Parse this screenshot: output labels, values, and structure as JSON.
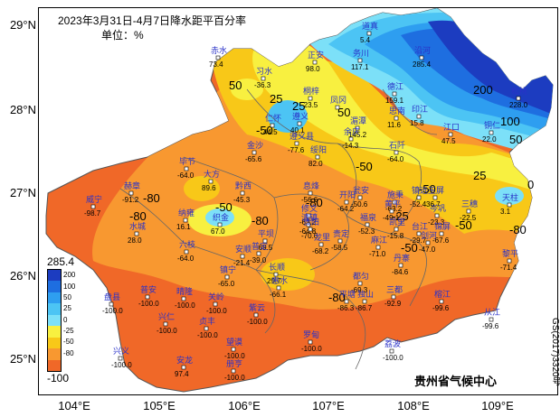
{
  "title": "2023年3月31日-4月7日降水距平百分率",
  "unit": "单位：%",
  "credit": "贵州省气候中心",
  "map_number": "GS(2017)3320号",
  "lat_labels": [
    "29°N",
    "28°N",
    "27°N",
    "26°N",
    "25°N"
  ],
  "lon_labels": [
    "104°E",
    "105°E",
    "106°E",
    "107°E",
    "108°E",
    "109°E"
  ],
  "legend": {
    "max": "285.4",
    "min": "-100",
    "ticks": [
      "200",
      "100",
      "50",
      "25",
      "0",
      "-25",
      "-50",
      "-80"
    ],
    "colors": [
      "#1c3cc0",
      "#1e6ee0",
      "#2e9ef0",
      "#4cc4f4",
      "#7ce0f8",
      "#f8f040",
      "#f8c818",
      "#f89830",
      "#f06828"
    ]
  },
  "contour_labels": [
    "50",
    "25",
    "25",
    "50",
    "100",
    "200",
    "-50",
    "-50",
    "-80",
    "-50",
    "-80",
    "-80",
    "-50",
    "25",
    "50",
    "-25",
    "-50",
    "0",
    "-80",
    "-50",
    "-80",
    "-80"
  ],
  "stations": [
    {
      "name": "赤水",
      "value": "73.4"
    },
    {
      "name": "习水",
      "value": "-36.3"
    },
    {
      "name": "桐梓",
      "value": "-23.5"
    },
    {
      "name": "道真",
      "value": "5.4"
    },
    {
      "name": "正安",
      "value": "98.0"
    },
    {
      "name": "务川",
      "value": "117.1"
    },
    {
      "name": "沿河",
      "value": "285.4"
    },
    {
      "name": "德江",
      "value": "159.1"
    },
    {
      "name": "印江",
      "value": "15.8"
    },
    {
      "name": "思南",
      "value": "11.6"
    },
    {
      "name": "江口",
      "value": "47.5"
    },
    {
      "name": "铜仁",
      "value": "22.0"
    },
    {
      "name": "松桃",
      "value": "228.0"
    },
    {
      "name": "仁怀",
      "value": "44.5"
    },
    {
      "name": "遵义",
      "value": "40.1"
    },
    {
      "name": "湄潭",
      "value": "145.2"
    },
    {
      "name": "凤冈",
      "value": ""
    },
    {
      "name": "金沙",
      "value": "-65.6"
    },
    {
      "name": "遵义县",
      "value": "-77.6"
    },
    {
      "name": "绥阳",
      "value": "82.0"
    },
    {
      "name": "余庆",
      "value": "-14.3"
    },
    {
      "name": "石阡",
      "value": "-64.0"
    },
    {
      "name": "毕节",
      "value": "-64.0"
    },
    {
      "name": "大方",
      "value": "89.6"
    },
    {
      "name": "威宁",
      "value": "-98.7"
    },
    {
      "name": "赫章",
      "value": "-91.2"
    },
    {
      "name": "黔西",
      "value": "-45.3"
    },
    {
      "name": "息烽",
      "value": "-56.6"
    },
    {
      "name": "开阳",
      "value": "-64.2"
    },
    {
      "name": "瓮安",
      "value": "-50.6"
    },
    {
      "name": "施秉",
      "value": "-63.2"
    },
    {
      "name": "镇远",
      "value": "-52.4"
    },
    {
      "name": "岑巩",
      "value": "-23.3"
    },
    {
      "name": "三穗",
      "value": "-22.5"
    },
    {
      "name": "玉屏",
      "value": "36.7"
    },
    {
      "name": "天柱",
      "value": "3.1"
    },
    {
      "name": "纳雍",
      "value": "16.1"
    },
    {
      "name": "织金",
      "value": "67.0"
    },
    {
      "name": "水城",
      "value": "28.0"
    },
    {
      "name": "六枝",
      "value": "-64.0"
    },
    {
      "name": "修文",
      "value": "-63.2"
    },
    {
      "name": "清镇",
      "value": "-64.8"
    },
    {
      "name": "贵阳",
      "value": "-70.6"
    },
    {
      "name": "平坝",
      "value": "-69.5"
    },
    {
      "name": "龙里",
      "value": "-68.2"
    },
    {
      "name": "贵定",
      "value": "-58.5"
    },
    {
      "name": "福泉",
      "value": "-52.3"
    },
    {
      "name": "黄平",
      "value": "-49.1"
    },
    {
      "name": "凯里",
      "value": "-15.8"
    },
    {
      "name": "台江",
      "value": "-29.7"
    },
    {
      "name": "剑河",
      "value": "-47.0"
    },
    {
      "name": "锦屏",
      "value": "-67.6"
    },
    {
      "name": "麻江",
      "value": "-71.0"
    },
    {
      "name": "丹寨",
      "value": "-84.6"
    },
    {
      "name": "黎平",
      "value": "-71.4"
    },
    {
      "name": "普定",
      "value": "-39.0"
    },
    {
      "name": "安顺",
      "value": "-21.4"
    },
    {
      "name": "长顺",
      "value": "29.7"
    },
    {
      "name": "惠水",
      "value": "-66.1"
    },
    {
      "name": "都匀",
      "value": "-69.3"
    },
    {
      "name": "盘县",
      "value": "-100.0"
    },
    {
      "name": "普安",
      "value": "-100.0"
    },
    {
      "name": "晴隆",
      "value": "-100.0"
    },
    {
      "name": "关岭",
      "value": "-100.0"
    },
    {
      "name": "镇宁",
      "value": "-65.0"
    },
    {
      "name": "紫云",
      "value": "-100.0"
    },
    {
      "name": "罗甸",
      "value": "-100.0"
    },
    {
      "name": "平塘",
      "value": "-86.3"
    },
    {
      "name": "独山",
      "value": "-86.7"
    },
    {
      "name": "三都",
      "value": "-92.9"
    },
    {
      "name": "榕江",
      "value": "-99.6"
    },
    {
      "name": "从江",
      "value": "-99.6"
    },
    {
      "name": "兴仁",
      "value": "-100.0"
    },
    {
      "name": "贞丰",
      "value": "-100.0"
    },
    {
      "name": "望谟",
      "value": "-100.0"
    },
    {
      "name": "兴义",
      "value": "-100.0"
    },
    {
      "name": "安龙",
      "value": "97.4"
    },
    {
      "name": "册亨",
      "value": "-100.0"
    },
    {
      "name": "荔波",
      "value": "-100.0"
    }
  ]
}
